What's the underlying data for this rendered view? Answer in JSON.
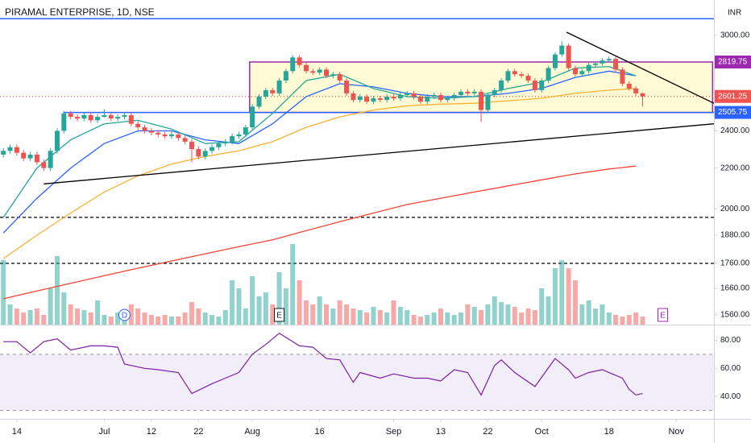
{
  "chart_data": {
    "type": "candlestick",
    "title": "PIRAMAL ENTERPRISE, 1D, NSE",
    "currency": "INR",
    "log_scale": true,
    "grid": false,
    "xlim": [
      -0.5,
      105.6
    ],
    "xticks": [
      {
        "value": 2,
        "label": "14"
      },
      {
        "value": 15,
        "label": "Jul"
      },
      {
        "value": 22,
        "label": "12"
      },
      {
        "value": 29,
        "label": "22"
      },
      {
        "value": 37,
        "label": "Aug"
      },
      {
        "value": 47,
        "label": "16"
      },
      {
        "value": 58,
        "label": "Sep"
      },
      {
        "value": 65,
        "label": "13"
      },
      {
        "value": 72,
        "label": "22"
      },
      {
        "value": 80,
        "label": "Oct"
      },
      {
        "value": 90,
        "label": "18"
      },
      {
        "value": 100,
        "label": "Nov"
      }
    ],
    "ylim": [
      1525,
      3260
    ],
    "yticks": [
      {
        "value": 3000,
        "label": "3000.00"
      },
      {
        "value": 2400,
        "label": "2400.00"
      },
      {
        "value": 2200,
        "label": "2200.00"
      },
      {
        "value": 2000,
        "label": "2000.00"
      },
      {
        "value": 1880,
        "label": "1880.00"
      },
      {
        "value": 1760,
        "label": "1760.00"
      },
      {
        "value": 1660,
        "label": "1660.00"
      },
      {
        "value": 1560,
        "label": "1560.00"
      }
    ],
    "up_color": "#26a69a",
    "down_color": "#ef5350",
    "candles": {
      "open": [
        2270,
        2290,
        2310,
        2280,
        2250,
        2270,
        2230,
        2200,
        2290,
        2400,
        2500,
        2480,
        2470,
        2490,
        2460,
        2480,
        2490,
        2470,
        2480,
        2490,
        2440,
        2420,
        2400,
        2390,
        2380,
        2370,
        2380,
        2360,
        2340,
        2300,
        2260,
        2290,
        2310,
        2330,
        2340,
        2370,
        2380,
        2420,
        2540,
        2600,
        2640,
        2620,
        2700,
        2760,
        2850,
        2800,
        2760,
        2750,
        2770,
        2730,
        2740,
        2700,
        2620,
        2580,
        2600,
        2570,
        2590,
        2580,
        2600,
        2590,
        2610,
        2620,
        2600,
        2570,
        2600,
        2610,
        2580,
        2590,
        2610,
        2630,
        2620,
        2630,
        2520,
        2610,
        2640,
        2700,
        2760,
        2740,
        2730,
        2700,
        2640,
        2700,
        2780,
        2870,
        2930,
        2780,
        2740,
        2760,
        2800,
        2810,
        2830,
        2840,
        2770,
        2680,
        2650,
        2620
      ],
      "high": [
        2305,
        2325,
        2325,
        2295,
        2285,
        2285,
        2245,
        2305,
        2415,
        2515,
        2515,
        2495,
        2505,
        2505,
        2495,
        2525,
        2505,
        2495,
        2505,
        2505,
        2455,
        2435,
        2415,
        2405,
        2395,
        2395,
        2395,
        2375,
        2355,
        2315,
        2305,
        2325,
        2345,
        2355,
        2385,
        2395,
        2435,
        2555,
        2615,
        2655,
        2655,
        2715,
        2775,
        2865,
        2865,
        2815,
        2775,
        2785,
        2785,
        2755,
        2755,
        2715,
        2635,
        2615,
        2615,
        2605,
        2605,
        2615,
        2615,
        2625,
        2635,
        2635,
        2615,
        2615,
        2625,
        2625,
        2605,
        2625,
        2645,
        2645,
        2645,
        2645,
        2625,
        2655,
        2715,
        2775,
        2775,
        2755,
        2745,
        2715,
        2715,
        2795,
        2885,
        2960,
        2945,
        2795,
        2775,
        2815,
        2825,
        2845,
        2855,
        2855,
        2785,
        2695,
        2665,
        2625
      ],
      "low": [
        2255,
        2275,
        2265,
        2235,
        2235,
        2215,
        2185,
        2185,
        2275,
        2385,
        2465,
        2455,
        2455,
        2445,
        2445,
        2475,
        2455,
        2455,
        2465,
        2425,
        2405,
        2385,
        2375,
        2365,
        2355,
        2355,
        2345,
        2325,
        2230,
        2245,
        2245,
        2275,
        2295,
        2315,
        2325,
        2355,
        2365,
        2405,
        2525,
        2585,
        2605,
        2605,
        2685,
        2745,
        2785,
        2745,
        2735,
        2735,
        2715,
        2715,
        2685,
        2605,
        2565,
        2565,
        2555,
        2555,
        2565,
        2565,
        2575,
        2575,
        2595,
        2585,
        2555,
        2555,
        2585,
        2565,
        2565,
        2575,
        2595,
        2605,
        2605,
        2450,
        2505,
        2595,
        2625,
        2685,
        2725,
        2715,
        2685,
        2625,
        2625,
        2685,
        2765,
        2855,
        2765,
        2725,
        2725,
        2745,
        2785,
        2795,
        2815,
        2755,
        2665,
        2635,
        2605,
        2540
      ],
      "close": [
        2290,
        2310,
        2280,
        2250,
        2270,
        2230,
        2200,
        2290,
        2400,
        2500,
        2480,
        2470,
        2490,
        2460,
        2480,
        2490,
        2470,
        2480,
        2490,
        2440,
        2420,
        2400,
        2390,
        2380,
        2370,
        2380,
        2360,
        2340,
        2300,
        2260,
        2290,
        2310,
        2330,
        2340,
        2370,
        2380,
        2420,
        2540,
        2600,
        2640,
        2620,
        2700,
        2760,
        2850,
        2800,
        2760,
        2750,
        2770,
        2730,
        2740,
        2700,
        2620,
        2580,
        2600,
        2570,
        2590,
        2580,
        2600,
        2590,
        2610,
        2620,
        2600,
        2570,
        2600,
        2610,
        2580,
        2590,
        2610,
        2630,
        2620,
        2630,
        2520,
        2610,
        2640,
        2700,
        2760,
        2740,
        2730,
        2700,
        2640,
        2700,
        2780,
        2870,
        2930,
        2780,
        2740,
        2760,
        2800,
        2810,
        2830,
        2840,
        2770,
        2680,
        2650,
        2620,
        2601.25
      ]
    },
    "vlim": [
      0,
      100
    ],
    "volume": [
      80,
      25,
      20,
      15,
      18,
      20,
      12,
      45,
      85,
      40,
      25,
      20,
      18,
      15,
      30,
      12,
      10,
      15,
      10,
      25,
      20,
      15,
      12,
      10,
      12,
      10,
      10,
      15,
      28,
      20,
      15,
      12,
      10,
      18,
      55,
      45,
      20,
      60,
      35,
      40,
      25,
      65,
      45,
      100,
      55,
      30,
      25,
      35,
      25,
      20,
      30,
      25,
      20,
      18,
      15,
      22,
      18,
      15,
      30,
      22,
      18,
      12,
      10,
      12,
      15,
      20,
      15,
      12,
      15,
      25,
      22,
      18,
      25,
      35,
      28,
      25,
      22,
      15,
      20,
      18,
      45,
      35,
      70,
      80,
      70,
      55,
      25,
      30,
      20,
      25,
      15,
      12,
      10,
      12,
      15,
      10
    ],
    "series": [
      {
        "color": "#f44336",
        "x": [
          0,
          5,
          10,
          15,
          20,
          25,
          30,
          35,
          40,
          45,
          50,
          55,
          60,
          65,
          70,
          75,
          80,
          85,
          90,
          94
        ],
        "values": [
          1620,
          1650,
          1680,
          1710,
          1740,
          1770,
          1800,
          1830,
          1860,
          1900,
          1940,
          1980,
          2020,
          2050,
          2080,
          2110,
          2140,
          2170,
          2195,
          2210
        ]
      },
      {
        "color": "#f9b233",
        "x": [
          0,
          5,
          10,
          15,
          20,
          25,
          30,
          35,
          40,
          45,
          50,
          55,
          60,
          65,
          70,
          75,
          80,
          85,
          90,
          94
        ],
        "values": [
          1780,
          1880,
          1980,
          2080,
          2160,
          2220,
          2260,
          2290,
          2340,
          2420,
          2480,
          2520,
          2545,
          2555,
          2560,
          2575,
          2590,
          2620,
          2640,
          2650
        ]
      },
      {
        "color": "#2962ff",
        "x": [
          0,
          5,
          10,
          15,
          20,
          25,
          30,
          35,
          40,
          45,
          50,
          55,
          60,
          65,
          70,
          75,
          80,
          85,
          90,
          94
        ],
        "values": [
          1890,
          2050,
          2200,
          2330,
          2400,
          2400,
          2350,
          2330,
          2440,
          2600,
          2680,
          2660,
          2620,
          2600,
          2600,
          2620,
          2650,
          2720,
          2760,
          2730
        ]
      },
      {
        "color": "#26a69a",
        "x": [
          0,
          5,
          10,
          15,
          20,
          25,
          30,
          35,
          40,
          45,
          50,
          55,
          60,
          65,
          70,
          75,
          80,
          85,
          90,
          94
        ],
        "values": [
          1960,
          2200,
          2350,
          2440,
          2460,
          2410,
          2330,
          2340,
          2500,
          2700,
          2740,
          2650,
          2600,
          2590,
          2600,
          2650,
          2690,
          2780,
          2790,
          2730
        ]
      }
    ],
    "box": {
      "x": [
        36.6,
        105.4
      ],
      "values": [
        2505.75,
        2819.75
      ],
      "color": "#9c27b0"
    },
    "hlines": [
      {
        "value": 3120,
        "x": -0.5,
        "color": "#2962ff",
        "dash": "none"
      },
      {
        "value": 2505.75,
        "x": 8.9,
        "color": "#2962ff",
        "dash": "none"
      },
      {
        "value": 2601.25,
        "x": -0.5,
        "color": "#ef5350",
        "dash": "1 3"
      },
      {
        "value": 1960,
        "x": -0.5,
        "color": "#000000",
        "dash": "4 3"
      },
      {
        "value": 1760,
        "x": -0.5,
        "color": "#000000",
        "dash": "4 3"
      }
    ],
    "trendlines": [
      {
        "x": [
          6,
          105.6
        ],
        "values": [
          2120,
          2440
        ],
        "color": "#000000"
      },
      {
        "x": [
          83.7,
          105.6
        ],
        "values": [
          3023,
          2560
        ],
        "color": "#000000"
      }
    ],
    "price_labels": [
      {
        "value": 2819.75,
        "color": "#9c27b0"
      },
      {
        "value": 2601.25,
        "color": "#ef5350"
      },
      {
        "value": 2505.75,
        "color": "#2962ff"
      }
    ],
    "events": [
      {
        "x": 18,
        "label": "D",
        "shape": "circle",
        "color": "#2962ff"
      },
      {
        "x": 41,
        "label": "E",
        "shape": "square",
        "color": "#131722"
      },
      {
        "x": 98,
        "label": "E",
        "shape": "square",
        "color": "#9c27b0"
      }
    ],
    "rsi": {
      "color": "#7b1fa2",
      "ylim": [
        24,
        90
      ],
      "yticks": [
        {
          "value": 80,
          "label": "80.00"
        },
        {
          "value": 60,
          "label": "60.00"
        },
        {
          "value": 40,
          "label": "40.00"
        }
      ],
      "band": [
        30,
        70
      ],
      "x": [
        0,
        2,
        4,
        6,
        8,
        10,
        13,
        15,
        17,
        18,
        21,
        23,
        26,
        28,
        31,
        33,
        35,
        37,
        39,
        41,
        44,
        46,
        48,
        50,
        52,
        53,
        56,
        58,
        61,
        63,
        65,
        67,
        69,
        71,
        73,
        74,
        76,
        79,
        82,
        84,
        85,
        87,
        89,
        92,
        93,
        94,
        95
      ],
      "values": [
        79,
        79,
        71,
        79,
        81,
        73,
        76,
        76,
        75,
        63,
        60,
        59,
        57,
        42,
        49,
        53,
        57,
        70,
        77,
        85,
        76,
        75,
        67,
        66,
        50,
        57,
        53,
        56,
        53,
        53,
        51,
        59,
        57,
        41,
        62,
        66,
        57,
        47,
        67,
        59,
        53,
        57,
        59,
        53,
        45,
        41,
        42
      ]
    }
  }
}
